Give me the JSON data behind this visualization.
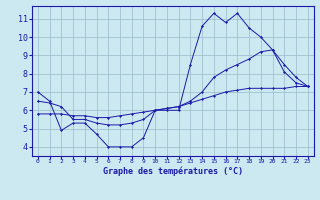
{
  "xlabel": "Graphe des températures (°C)",
  "bg_color": "#cce8f0",
  "line_color": "#1a1aaa",
  "grid_color": "#99bbcc",
  "xlim": [
    -0.5,
    23.5
  ],
  "ylim": [
    3.5,
    11.7
  ],
  "yticks": [
    4,
    5,
    6,
    7,
    8,
    9,
    10,
    11
  ],
  "xticks": [
    0,
    1,
    2,
    3,
    4,
    5,
    6,
    7,
    8,
    9,
    10,
    11,
    12,
    13,
    14,
    15,
    16,
    17,
    18,
    19,
    20,
    21,
    22,
    23
  ],
  "line1_x": [
    0,
    1,
    2,
    3,
    4,
    5,
    6,
    7,
    8,
    9,
    10,
    11,
    12,
    13,
    14,
    15,
    16,
    17,
    18,
    19,
    20,
    21,
    22,
    23
  ],
  "line1_y": [
    7.0,
    6.5,
    4.9,
    5.3,
    5.3,
    4.7,
    4.0,
    4.0,
    4.0,
    4.5,
    6.0,
    6.0,
    6.0,
    8.5,
    10.6,
    11.3,
    10.8,
    11.3,
    10.5,
    10.0,
    9.3,
    8.1,
    7.5,
    7.3
  ],
  "line2_x": [
    0,
    1,
    2,
    3,
    4,
    5,
    6,
    7,
    8,
    9,
    10,
    11,
    12,
    13,
    14,
    15,
    16,
    17,
    18,
    19,
    20,
    21,
    22,
    23
  ],
  "line2_y": [
    6.5,
    6.4,
    6.2,
    5.5,
    5.5,
    5.3,
    5.2,
    5.2,
    5.3,
    5.5,
    6.0,
    6.1,
    6.2,
    6.5,
    7.0,
    7.8,
    8.2,
    8.5,
    8.8,
    9.2,
    9.3,
    8.5,
    7.8,
    7.3
  ],
  "line3_x": [
    0,
    1,
    2,
    3,
    4,
    5,
    6,
    7,
    8,
    9,
    10,
    11,
    12,
    13,
    14,
    15,
    16,
    17,
    18,
    19,
    20,
    21,
    22,
    23
  ],
  "line3_y": [
    5.8,
    5.8,
    5.8,
    5.7,
    5.7,
    5.6,
    5.6,
    5.7,
    5.8,
    5.9,
    6.0,
    6.1,
    6.2,
    6.4,
    6.6,
    6.8,
    7.0,
    7.1,
    7.2,
    7.2,
    7.2,
    7.2,
    7.3,
    7.3
  ]
}
